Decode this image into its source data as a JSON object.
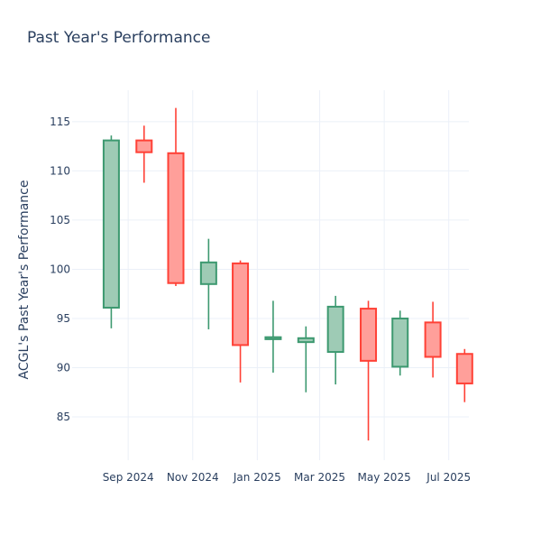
{
  "chart_data": {
    "type": "candlestick",
    "title": "Past Year's Performance",
    "xlabel": "",
    "ylabel": "ACGL's Past Year's Performance",
    "ylim": [
      80.6,
      118.2
    ],
    "yticks": [
      85,
      90,
      95,
      100,
      105,
      110,
      115
    ],
    "xticks": [
      {
        "label": "Sep 2024",
        "date": "2024-09-01"
      },
      {
        "label": "Nov 2024",
        "date": "2024-11-01"
      },
      {
        "label": "Jan 2025",
        "date": "2025-01-01"
      },
      {
        "label": "Mar 2025",
        "date": "2025-03-01"
      },
      {
        "label": "May 2025",
        "date": "2025-05-01"
      },
      {
        "label": "Jul 2025",
        "date": "2025-07-01"
      }
    ],
    "xrange": [
      "2024-07-10",
      "2025-07-20"
    ],
    "grid": true,
    "colors": {
      "increasing_line": "#3d9970",
      "increasing_fill": "#9ecbb5",
      "decreasing_line": "#ff4136",
      "decreasing_fill": "#ff9f9a",
      "grid": "#ebf0f8",
      "text": "#2a3f5f"
    },
    "candles": [
      {
        "date": "2024-08-01",
        "open": 96.1,
        "high": 113.6,
        "low": 94.0,
        "close": 113.1
      },
      {
        "date": "2024-09-01",
        "open": 113.1,
        "high": 114.6,
        "low": 108.8,
        "close": 111.9
      },
      {
        "date": "2024-10-01",
        "open": 111.8,
        "high": 116.4,
        "low": 98.3,
        "close": 98.6
      },
      {
        "date": "2024-11-01",
        "open": 98.5,
        "high": 103.1,
        "low": 93.9,
        "close": 100.7
      },
      {
        "date": "2024-12-01",
        "open": 100.6,
        "high": 100.9,
        "low": 88.5,
        "close": 92.3
      },
      {
        "date": "2025-01-01",
        "open": 92.9,
        "high": 96.8,
        "low": 89.5,
        "close": 93.1
      },
      {
        "date": "2025-02-01",
        "open": 92.6,
        "high": 94.2,
        "low": 87.5,
        "close": 93.0
      },
      {
        "date": "2025-03-01",
        "open": 91.6,
        "high": 97.3,
        "low": 88.3,
        "close": 96.2
      },
      {
        "date": "2025-04-01",
        "open": 96.0,
        "high": 96.8,
        "low": 82.6,
        "close": 90.7
      },
      {
        "date": "2025-05-01",
        "open": 90.1,
        "high": 95.8,
        "low": 89.2,
        "close": 95.0
      },
      {
        "date": "2025-06-01",
        "open": 94.6,
        "high": 96.7,
        "low": 89.0,
        "close": 91.1
      },
      {
        "date": "2025-07-01",
        "open": 91.4,
        "high": 91.9,
        "low": 86.5,
        "close": 88.4
      }
    ]
  }
}
